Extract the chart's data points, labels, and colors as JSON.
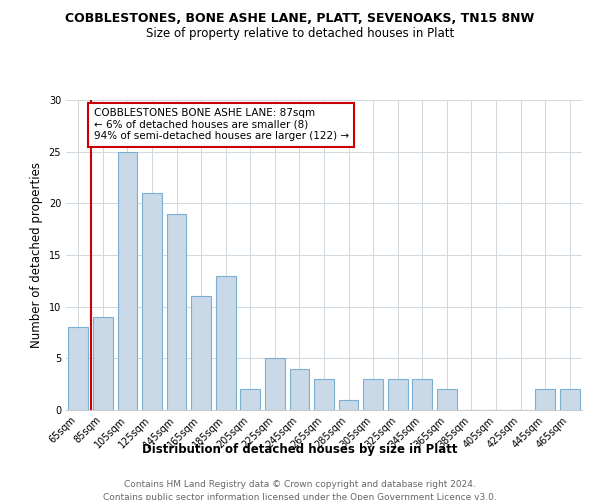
{
  "title": "COBBLESTONES, BONE ASHE LANE, PLATT, SEVENOAKS, TN15 8NW",
  "subtitle": "Size of property relative to detached houses in Platt",
  "xlabel": "Distribution of detached houses by size in Platt",
  "ylabel": "Number of detached properties",
  "categories": [
    "65sqm",
    "85sqm",
    "105sqm",
    "125sqm",
    "145sqm",
    "165sqm",
    "185sqm",
    "205sqm",
    "225sqm",
    "245sqm",
    "265sqm",
    "285sqm",
    "305sqm",
    "325sqm",
    "345sqm",
    "365sqm",
    "385sqm",
    "405sqm",
    "425sqm",
    "445sqm",
    "465sqm"
  ],
  "values": [
    8,
    9,
    25,
    21,
    19,
    11,
    13,
    2,
    5,
    4,
    3,
    1,
    3,
    3,
    3,
    2,
    0,
    0,
    0,
    2,
    2
  ],
  "bar_color": "#c9d9e8",
  "bar_edge_color": "#7bafd4",
  "annotation_text_line1": "COBBLESTONES BONE ASHE LANE: 87sqm",
  "annotation_text_line2": "← 6% of detached houses are smaller (8)",
  "annotation_text_line3": "94% of semi-detached houses are larger (122) →",
  "annotation_box_color": "#ffffff",
  "annotation_border_color": "#cc0000",
  "vline_color": "#cc0000",
  "ylim": [
    0,
    30
  ],
  "yticks": [
    0,
    5,
    10,
    15,
    20,
    25,
    30
  ],
  "footer_line1": "Contains HM Land Registry data © Crown copyright and database right 2024.",
  "footer_line2": "Contains public sector information licensed under the Open Government Licence v3.0.",
  "background_color": "#ffffff",
  "grid_color": "#d0d8e0",
  "title_fontsize": 9,
  "subtitle_fontsize": 8.5,
  "axis_label_fontsize": 8.5,
  "tick_fontsize": 7,
  "annotation_fontsize": 7.5,
  "footer_fontsize": 6.5
}
